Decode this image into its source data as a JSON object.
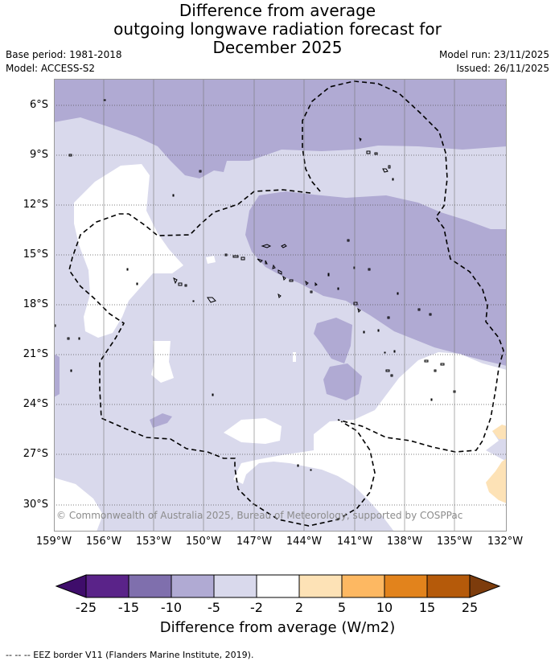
{
  "title": {
    "line1": "Difference from average",
    "line2": "outgoing longwave radiation forecast for",
    "line3": "December 2025"
  },
  "meta": {
    "base_period": "Base period: 1981-2018",
    "model": "Model: ACCESS-S2",
    "model_run": "Model run: 23/11/2025",
    "issued": "Issued: 26/11/2025"
  },
  "map": {
    "latitude_labels": [
      "6°S",
      "9°S",
      "12°S",
      "15°S",
      "18°S",
      "21°S",
      "24°S",
      "27°S",
      "30°S"
    ],
    "longitude_labels": [
      "159°W",
      "156°W",
      "153°W",
      "150°W",
      "147°W",
      "144°W",
      "141°W",
      "138°W",
      "135°W",
      "132°W"
    ],
    "copyright": "© Commonwealth of Australia 2025, Bureau of Meteorology, supported by COSPPac",
    "extent": {
      "lon_min": -159,
      "lon_max": -132,
      "lat_min": -31.5,
      "lat_max": -4.5
    }
  },
  "colorbar": {
    "tick_labels": [
      "-25",
      "-15",
      "-10",
      "-5",
      "-2",
      "2",
      "5",
      "10",
      "15",
      "25"
    ],
    "title": "Difference from average (W/m2)",
    "colors": [
      "#3f0d6b",
      "#5a2389",
      "#7f6fad",
      "#b0aad3",
      "#d9d9ec",
      "#ffffff",
      "#fde2b6",
      "#fdb862",
      "#e2831c",
      "#b55a0a",
      "#7d3c0c"
    ]
  },
  "footer": "--  --  -- EEZ border V11 (Flanders Marine Institute, 2019)."
}
